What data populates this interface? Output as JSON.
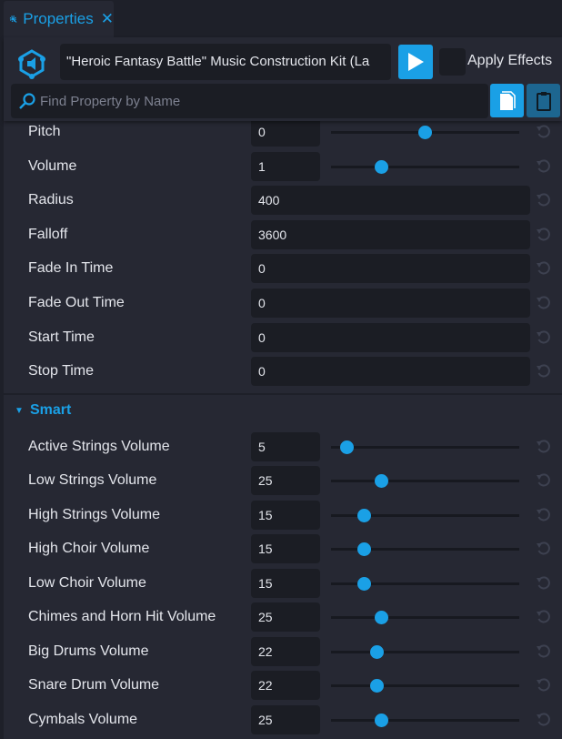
{
  "tab": {
    "title": "Properties",
    "icon": "gear-wrench-icon",
    "close": "✕"
  },
  "header": {
    "asset_name": "\"Heroic Fantasy Battle\" Music Construction Kit (La",
    "apply_effects_label": "Apply Effects",
    "apply_effects_checked": false
  },
  "search": {
    "placeholder": "Find Property by Name"
  },
  "colors": {
    "accent": "#1aa0e6",
    "panel": "#262833",
    "field": "#1b1d24"
  },
  "properties": [
    {
      "label": "Pitch",
      "value": "0",
      "slider": true,
      "min": -24,
      "max": 24
    },
    {
      "label": "Volume",
      "value": "1",
      "slider": true,
      "min": 0,
      "max": 4
    },
    {
      "label": "Radius",
      "value": "400",
      "slider": false
    },
    {
      "label": "Falloff",
      "value": "3600",
      "slider": false
    },
    {
      "label": "Fade In Time",
      "value": "0",
      "slider": false
    },
    {
      "label": "Fade Out Time",
      "value": "0",
      "slider": false
    },
    {
      "label": "Start Time",
      "value": "0",
      "slider": false
    },
    {
      "label": "Stop Time",
      "value": "0",
      "slider": false
    }
  ],
  "smart": {
    "title": "Smart",
    "expanded": true,
    "properties": [
      {
        "label": "Active Strings Volume",
        "value": "5",
        "slider": true,
        "min": 0,
        "max": 100
      },
      {
        "label": "Low Strings Volume",
        "value": "25",
        "slider": true,
        "min": 0,
        "max": 100
      },
      {
        "label": "High Strings Volume",
        "value": "15",
        "slider": true,
        "min": 0,
        "max": 100
      },
      {
        "label": "High Choir Volume",
        "value": "15",
        "slider": true,
        "min": 0,
        "max": 100
      },
      {
        "label": "Low Choir Volume",
        "value": "15",
        "slider": true,
        "min": 0,
        "max": 100
      },
      {
        "label": "Chimes and Horn Hit Volume",
        "value": "25",
        "slider": true,
        "min": 0,
        "max": 100
      },
      {
        "label": "Big Drums Volume",
        "value": "22",
        "slider": true,
        "min": 0,
        "max": 100
      },
      {
        "label": "Snare Drum Volume",
        "value": "22",
        "slider": true,
        "min": 0,
        "max": 100
      },
      {
        "label": "Cymbals Volume",
        "value": "25",
        "slider": true,
        "min": 0,
        "max": 100
      }
    ]
  }
}
